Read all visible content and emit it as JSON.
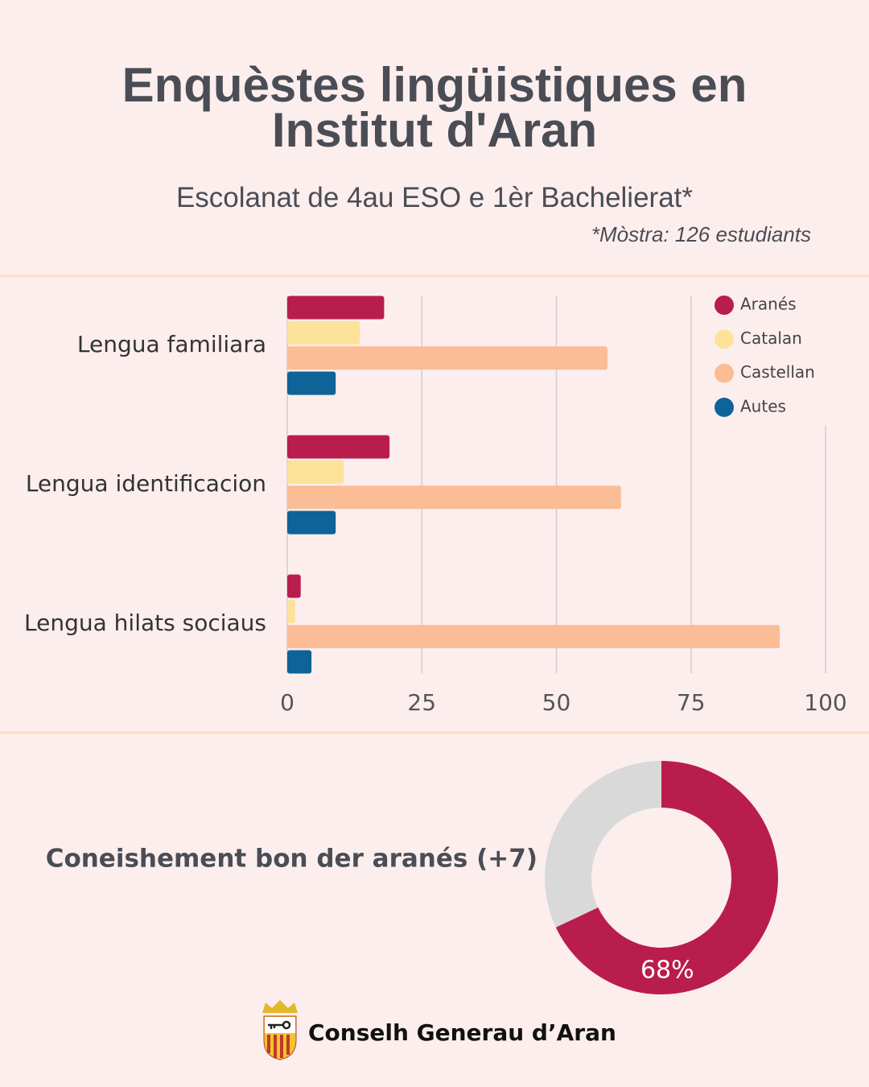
{
  "header": {
    "title": "Enquèstes lingüistiques en Institut d'Aran",
    "subtitle": "Escolanat de 4au ESO e 1èr Bachelierat*",
    "note": "*Mòstra: 126 estudiants"
  },
  "chart_data": [
    {
      "type": "bar",
      "orientation": "horizontal",
      "categories": [
        "Lengua familiara",
        "Lengua identificacion",
        "Lengua hilats sociaus"
      ],
      "series": [
        {
          "name": "Aranés",
          "color": "#b91d4e",
          "values": [
            18,
            19,
            2.5
          ]
        },
        {
          "name": "Catalan",
          "color": "#fde29a",
          "values": [
            13.5,
            10.5,
            1.5
          ]
        },
        {
          "name": "Castellan",
          "color": "#fbbd96",
          "values": [
            59.5,
            62,
            91.5
          ]
        },
        {
          "name": "Autes",
          "color": "#0e6399",
          "values": [
            9,
            9,
            4.5
          ]
        }
      ],
      "xlim": [
        0,
        100
      ],
      "xticks": [
        0,
        25,
        50,
        75,
        100
      ],
      "grid": true,
      "legend": "top-right"
    },
    {
      "type": "donut",
      "title": "Coneishement bon der aranés (+7)",
      "values": [
        68,
        32
      ],
      "value_labels": [
        "68%",
        null
      ],
      "colors": [
        "#b91d4e",
        "#d9d9d9"
      ]
    }
  ],
  "footer": {
    "text": "Conselh Generau d’Aran"
  }
}
